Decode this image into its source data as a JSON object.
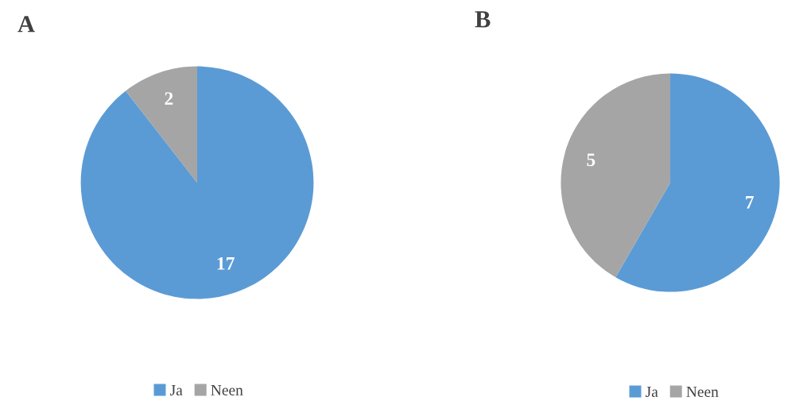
{
  "chart_data": [
    {
      "type": "pie",
      "title": "A",
      "categories": [
        "Ja",
        "Neen"
      ],
      "values": [
        17,
        2
      ],
      "colors": [
        "#5b9bd5",
        "#a5a5a5"
      ],
      "data_labels": true,
      "legend": "bottom"
    },
    {
      "type": "pie",
      "title": "B",
      "categories": [
        "Ja",
        "Neen"
      ],
      "values": [
        7,
        5
      ],
      "colors": [
        "#5b9bd5",
        "#a5a5a5"
      ],
      "data_labels": true,
      "legend": "bottom"
    }
  ]
}
